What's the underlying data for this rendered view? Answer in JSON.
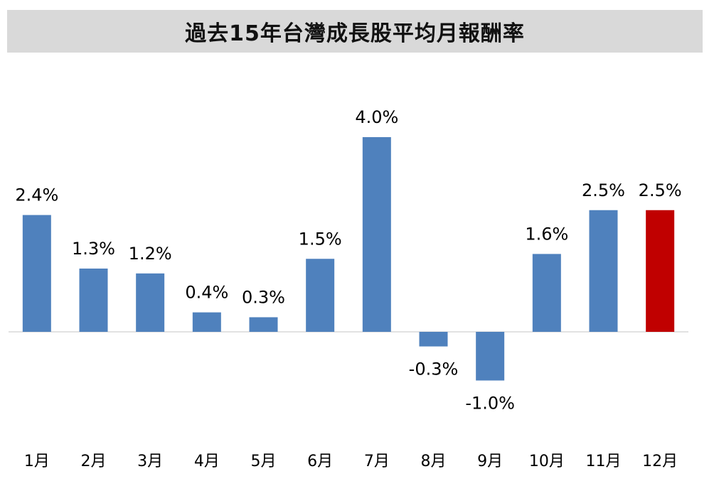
{
  "title": "過去15年台灣成長股平均月報酬率",
  "colors": {
    "bar": "#4f81bd",
    "highlight": "#c00000",
    "axis": "#d9d9d9",
    "title_bg": "#d9d9d9"
  },
  "chart_data": {
    "type": "bar",
    "title": "過去15年台灣成長股平均月報酬率",
    "categories": [
      "1月",
      "2月",
      "3月",
      "4月",
      "5月",
      "6月",
      "7月",
      "8月",
      "9月",
      "10月",
      "11月",
      "12月"
    ],
    "values": [
      2.4,
      1.3,
      1.2,
      0.4,
      0.3,
      1.5,
      4.0,
      -0.3,
      -1.0,
      1.6,
      2.5,
      2.5
    ],
    "value_labels": [
      "2.4%",
      "1.3%",
      "1.2%",
      "0.4%",
      "0.3%",
      "1.5%",
      "4.0%",
      "-0.3%",
      "-1.0%",
      "1.6%",
      "2.5%",
      "2.5%"
    ],
    "highlight_category": "12月",
    "ylim": [
      -1.5,
      4.5
    ],
    "xlabel": "",
    "ylabel": "",
    "grid": false,
    "legend": "none"
  }
}
